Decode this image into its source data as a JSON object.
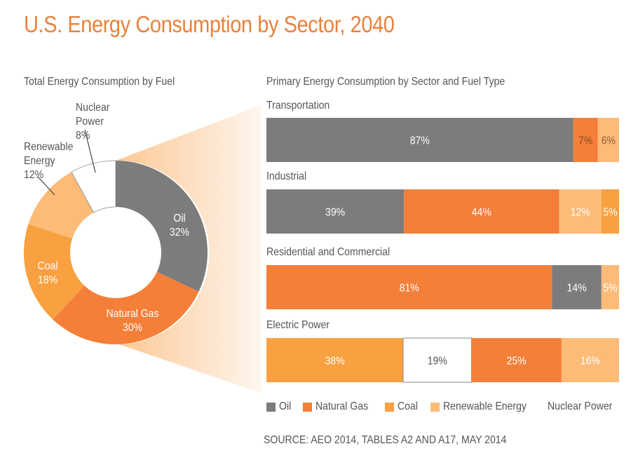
{
  "title": "U.S. Energy Consumption by Sector, 2040",
  "source": "SOURCE: AEO 2014, TABLES A2 AND A17, MAY 2014",
  "colors": {
    "title": "#e9823d",
    "Oil": "#7d7c7d",
    "Natural Gas": "#f47f38",
    "Coal": "#f9a040",
    "Renewable Energy": "#fdbb78",
    "Nuclear Power": "#ffffff",
    "callout_gradient_start": "#fcc793",
    "callout_gradient_end": "#fef6ee"
  },
  "chart_data": [
    {
      "type": "pie",
      "variant": "donut",
      "title": "Total Energy Consumption by Fuel",
      "slices": [
        {
          "label": "Oil",
          "value": 32,
          "display": "32%",
          "label_color": "#ffffff"
        },
        {
          "label": "Natural Gas",
          "value": 30,
          "display": "30%",
          "label_color": "#ffffff"
        },
        {
          "label": "Coal",
          "value": 18,
          "display": "18%",
          "label_color": "#ffffff"
        },
        {
          "label": "Renewable Energy",
          "value": 12,
          "display": "12%",
          "label_color": "#555555",
          "label_lines": [
            "Renewable",
            "Energy",
            "12%"
          ],
          "callout": true
        },
        {
          "label": "Nuclear Power",
          "value": 8,
          "display": "8%",
          "label_color": "#555555",
          "label_lines": [
            "Nuclear",
            "Power",
            "8%"
          ],
          "callout": true
        }
      ],
      "start": "12 o'clock",
      "direction": "clockwise"
    },
    {
      "type": "bar",
      "orientation": "horizontal",
      "stacked": "100%",
      "title": "Primary Energy Consumption by Sector and Fuel Type",
      "legend": [
        "Oil",
        "Natural Gas",
        "Coal",
        "Renewable Energy",
        "Nuclear Power"
      ],
      "legend_position": "bottom",
      "categories": [
        "Transportation",
        "Industrial",
        "Residential and Commercial",
        "Electric Power"
      ],
      "bars": [
        {
          "category": "Transportation",
          "segments": [
            {
              "fuel": "Oil",
              "value": 87,
              "display": "87%",
              "text_color": "#ffffff"
            },
            {
              "fuel": "Natural Gas",
              "value": 7,
              "display": "7%",
              "text_color": "#8a4a22"
            },
            {
              "fuel": "Renewable Energy",
              "value": 6,
              "display": "6%",
              "text_color": "#8a5a30"
            }
          ]
        },
        {
          "category": "Industrial",
          "segments": [
            {
              "fuel": "Oil",
              "value": 39,
              "display": "39%",
              "text_color": "#ffffff"
            },
            {
              "fuel": "Natural Gas",
              "value": 44,
              "display": "44%",
              "text_color": "#ffffff"
            },
            {
              "fuel": "Renewable Energy",
              "value": 12,
              "display": "12%",
              "text_color": "#ffffff"
            },
            {
              "fuel": "Coal",
              "value": 5,
              "display": "5%",
              "text_color": "#ffffff"
            }
          ]
        },
        {
          "category": "Residential and Commercial",
          "segments": [
            {
              "fuel": "Natural Gas",
              "value": 81,
              "display": "81%",
              "text_color": "#ffffff"
            },
            {
              "fuel": "Oil",
              "value": 14,
              "display": "14%",
              "text_color": "#ffffff"
            },
            {
              "fuel": "Renewable Energy",
              "value": 5,
              "display": "5%",
              "text_color": "#ffffff"
            }
          ]
        },
        {
          "category": "Electric Power",
          "segments": [
            {
              "fuel": "Coal",
              "value": 38,
              "display": "38%",
              "text_color": "#ffffff"
            },
            {
              "fuel": "Nuclear Power",
              "value": 19,
              "display": "19%",
              "text_color": "#555555"
            },
            {
              "fuel": "Natural Gas",
              "value": 25,
              "display": "25%",
              "text_color": "#ffffff"
            },
            {
              "fuel": "Renewable Energy",
              "value": 16,
              "display": "16%",
              "text_color": "#ffffff"
            }
          ]
        }
      ]
    }
  ]
}
